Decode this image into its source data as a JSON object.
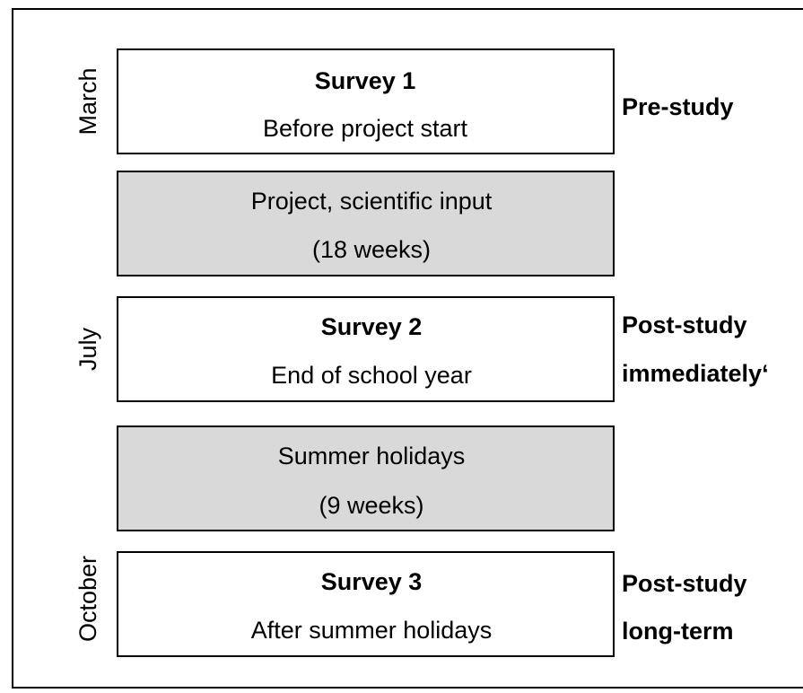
{
  "stages": [
    {
      "month": "March",
      "title": "Survey 1",
      "subtitle": "Before project start",
      "phase": [
        "Pre-study"
      ]
    },
    {
      "lines": [
        "Project, scientific input",
        "(18 weeks)"
      ]
    },
    {
      "month": "July",
      "title": "Survey 2",
      "subtitle": "End of school year",
      "phase": [
        "Post-study",
        "immediately‘"
      ]
    },
    {
      "lines": [
        "Summer holidays",
        "(9 weeks)"
      ]
    },
    {
      "month": "October",
      "title": "Survey 3",
      "subtitle": "After summer holidays",
      "phase": [
        "Post-study",
        "long-term"
      ]
    }
  ]
}
